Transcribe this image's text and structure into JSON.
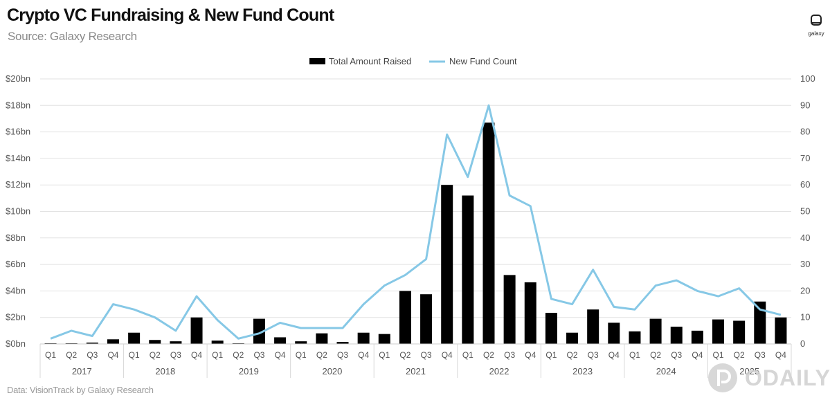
{
  "header": {
    "title": "Crypto VC Fundraising & New Fund Count",
    "subtitle": "Source: Galaxy Research"
  },
  "brand": {
    "label": "galaxy"
  },
  "footer": {
    "source": "Data: VisionTrack by Galaxy Research"
  },
  "watermark": {
    "label": "ODAILY"
  },
  "colors": {
    "bar": "#000000",
    "line": "#86c8e6",
    "grid": "#e2e2e2",
    "text": "#555555"
  },
  "chart_data": {
    "type": "bar",
    "title": "Crypto VC Fundraising & New Fund Count",
    "legend": [
      "Total Amount Raised",
      "New Fund Count"
    ],
    "legend_position": "top-center",
    "grid": true,
    "categories": [
      "Q1",
      "Q2",
      "Q3",
      "Q4",
      "Q1",
      "Q2",
      "Q3",
      "Q4",
      "Q1",
      "Q2",
      "Q3",
      "Q4",
      "Q1",
      "Q2",
      "Q3",
      "Q4",
      "Q1",
      "Q2",
      "Q3",
      "Q4",
      "Q1",
      "Q2",
      "Q3",
      "Q4",
      "Q1",
      "Q2",
      "Q3",
      "Q4",
      "Q1",
      "Q2",
      "Q3",
      "Q4",
      "Q1",
      "Q2",
      "Q3",
      "Q4"
    ],
    "years": [
      "2017",
      "2018",
      "2019",
      "2020",
      "2021",
      "2022",
      "2023",
      "2024",
      "2025"
    ],
    "series": [
      {
        "name": "Total Amount Raised",
        "type": "bar",
        "axis": "left",
        "values": [
          0.05,
          0.05,
          0.1,
          0.35,
          0.85,
          0.3,
          0.2,
          2.0,
          0.25,
          0.05,
          1.9,
          0.5,
          0.2,
          0.8,
          0.15,
          0.85,
          0.75,
          4.0,
          3.75,
          12.0,
          11.2,
          16.7,
          5.2,
          4.65,
          2.35,
          0.85,
          2.6,
          1.6,
          0.95,
          1.9,
          1.3,
          1.0,
          1.85,
          1.75,
          3.2,
          2.0
        ]
      },
      {
        "name": "New Fund Count",
        "type": "line",
        "axis": "right",
        "values": [
          2,
          5,
          3,
          15,
          13,
          10,
          5,
          18,
          9,
          2,
          4,
          8,
          6,
          6,
          6,
          15,
          22,
          26,
          32,
          79,
          63,
          90,
          56,
          52,
          17,
          15,
          28,
          14,
          13,
          22,
          24,
          20,
          18,
          21,
          13,
          11
        ]
      }
    ],
    "y_left": {
      "min": 0,
      "max": 20,
      "ticks": [
        "$0bn",
        "$2bn",
        "$4bn",
        "$6bn",
        "$8bn",
        "$10bn",
        "$12bn",
        "$14bn",
        "$16bn",
        "$18bn",
        "$20bn"
      ]
    },
    "y_right": {
      "min": 0,
      "max": 100,
      "ticks": [
        "0",
        "10",
        "20",
        "30",
        "40",
        "50",
        "60",
        "70",
        "80",
        "90",
        "100"
      ]
    }
  }
}
